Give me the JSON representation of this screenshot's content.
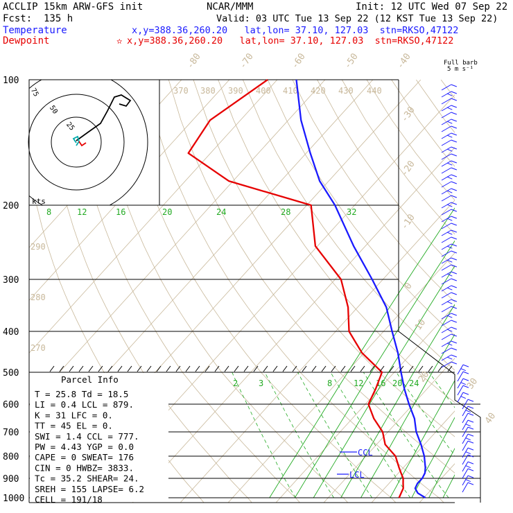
{
  "header": {
    "line1_left": "ACCLIP 15km ARW-GFS init",
    "line1_mid": "NCAR/MMM",
    "line1_right": "Init: 12 UTC Wed 07 Sep 22",
    "line2_left": "Fcst:  135 h",
    "line2_right": "Valid: 03 UTC Tue 13 Sep 22 (12 KST Tue 13 Sep 22)",
    "temp_label": "Temperature",
    "temp_info": "x,y=388.36,260.20   lat,lon= 37.10, 127.03  stn=RKSO,47122",
    "dew_label": "Dewpoint",
    "dew_info": "x,y=388.36,260.20   lat,lon= 37.10, 127.03  stn=RKSO,47122",
    "star_symbol": "✫"
  },
  "barb_legend": {
    "line1": "Full barb",
    "line2": "5 m s⁻¹"
  },
  "hodograph": {
    "rings": [
      "75",
      "50",
      "25"
    ],
    "units": "kts"
  },
  "theta_labels": [
    "370",
    "380",
    "390",
    "400",
    "410",
    "420",
    "430",
    "440",
    "290",
    "280",
    "270"
  ],
  "isotherm_labels": [
    "-80",
    "-70",
    "-60",
    "-50",
    "-40",
    "-30",
    "-20",
    "-10",
    "0",
    "10",
    "20",
    "30",
    "40"
  ],
  "mixing_ratio_labels_top": [
    "8",
    "12",
    "16",
    "20",
    "24",
    "28",
    "32"
  ],
  "mixing_ratio_labels_low": [
    "2",
    "3",
    "8",
    "12",
    "16",
    "20",
    "24"
  ],
  "levels": {
    "ccl": "CCL",
    "lcl": "LCL"
  },
  "parcel_info": {
    "title": "Parcel Info",
    "rows": [
      "T   =   25.8  Td =  18.5",
      "LI  =    0.4  LCL =  879.",
      "K   =     31  LFC =    0.",
      "TT  =     45  EL  =    0.",
      "SWI =    1.4  CCL =  777.",
      "PW  =   4.43  YGP =   0.0",
      "CAPE =     0  SWEAT=  176",
      "CIN  =     0  HWBZ= 3833.",
      "Tc  =   35.2  SHEAR=  24.",
      "SREH =   155  LAPSE=   6.2",
      "CELL = 191/18"
    ]
  },
  "colors": {
    "temperature": "#1a1aff",
    "dewpoint": "#e60000",
    "mixing_ratio": "#22aa22",
    "dry_adiabat": "#c8b89a",
    "isotherm": "#c8b89a",
    "hodo_wind": "#00aaaa"
  },
  "chart_data": {
    "type": "line",
    "title": "",
    "y_axis": "pressure_hPa",
    "y_ticks": [
      "100",
      "200",
      "300",
      "400",
      "500",
      "600",
      "700",
      "800",
      "900",
      "1000"
    ],
    "series": [
      {
        "name": "Temperature",
        "points": [
          [
            1000,
            24.0
          ],
          [
            975,
            21.5
          ],
          [
            950,
            20.0
          ],
          [
            925,
            19.5
          ],
          [
            900,
            19.5
          ],
          [
            875,
            19.0
          ],
          [
            850,
            18.0
          ],
          [
            800,
            15.5
          ],
          [
            750,
            12.5
          ],
          [
            700,
            9.0
          ],
          [
            650,
            6.0
          ],
          [
            600,
            2.0
          ],
          [
            550,
            -2.0
          ],
          [
            500,
            -6.0
          ],
          [
            450,
            -10.5
          ],
          [
            400,
            -16.0
          ],
          [
            350,
            -22.0
          ],
          [
            300,
            -30.5
          ],
          [
            250,
            -41.0
          ],
          [
            200,
            -53.0
          ],
          [
            175,
            -61.0
          ],
          [
            150,
            -68.5
          ],
          [
            125,
            -77.0
          ],
          [
            100,
            -86.0
          ]
        ]
      },
      {
        "name": "Dewpoint",
        "points": [
          [
            1000,
            18.5
          ],
          [
            975,
            18.0
          ],
          [
            950,
            17.5
          ],
          [
            925,
            16.5
          ],
          [
            900,
            15.5
          ],
          [
            875,
            14.0
          ],
          [
            850,
            12.5
          ],
          [
            800,
            9.5
          ],
          [
            750,
            5.0
          ],
          [
            700,
            2.0
          ],
          [
            650,
            -2.5
          ],
          [
            600,
            -6.5
          ],
          [
            550,
            -8.0
          ],
          [
            500,
            -10.0
          ],
          [
            450,
            -18.0
          ],
          [
            400,
            -25.0
          ],
          [
            350,
            -30.0
          ],
          [
            300,
            -37.0
          ],
          [
            250,
            -49.0
          ],
          [
            200,
            -58.0
          ],
          [
            175,
            -80.0
          ],
          [
            150,
            -94.0
          ],
          [
            125,
            -96.0
          ],
          [
            100,
            -92.0
          ]
        ]
      }
    ]
  }
}
